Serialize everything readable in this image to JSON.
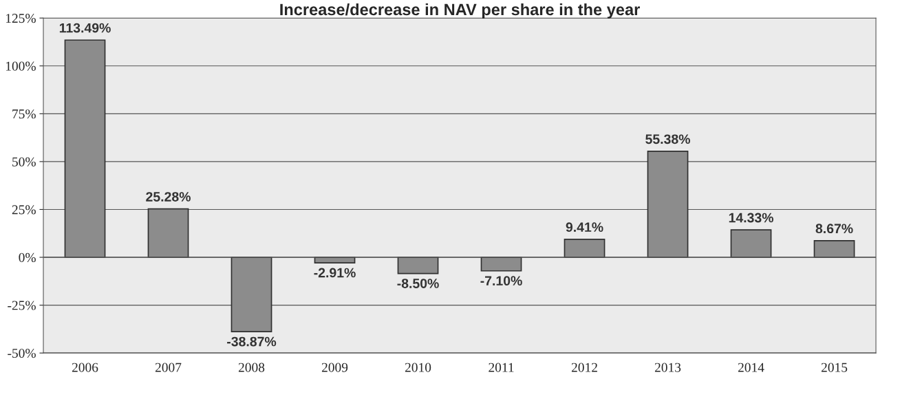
{
  "chart_data": {
    "type": "bar",
    "title": "Increase/decrease in NAV per share in the year",
    "categories": [
      "2006",
      "2007",
      "2008",
      "2009",
      "2010",
      "2011",
      "2012",
      "2013",
      "2014",
      "2015"
    ],
    "values": [
      113.49,
      25.28,
      -38.87,
      -2.91,
      -8.5,
      -7.1,
      9.41,
      55.38,
      14.33,
      8.67
    ],
    "value_labels": [
      "113.49%",
      "25.28%",
      "-38.87%",
      "-2.91%",
      "-8.50%",
      "-7.10%",
      "9.41%",
      "55.38%",
      "14.33%",
      "8.67%"
    ],
    "color": "#8c8c8c",
    "ylim": [
      -50,
      125
    ],
    "yticks": [
      {
        "value": -50,
        "label": "-50%"
      },
      {
        "value": -25,
        "label": "-25%"
      },
      {
        "value": 0,
        "label": "0%"
      },
      {
        "value": 25,
        "label": "25%"
      },
      {
        "value": 50,
        "label": "50%"
      },
      {
        "value": 75,
        "label": "75%"
      },
      {
        "value": 100,
        "label": "100%"
      },
      {
        "value": 125,
        "label": "125%"
      }
    ],
    "grid": "y"
  }
}
